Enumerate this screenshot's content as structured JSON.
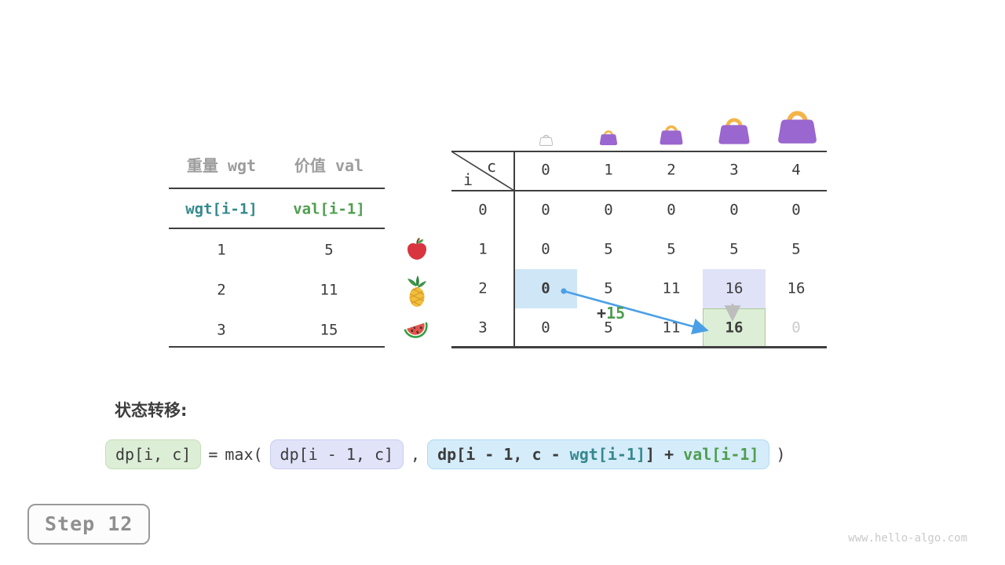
{
  "colors": {
    "accent_blue_arrow": "#4aa0e6",
    "gray_arrow": "#bdbdbd",
    "teal": "#35898d",
    "green": "#4f9e4f",
    "bag_purple": "#9a66cf",
    "bag_handle_orange": "#f3b54a",
    "hl_blue": "#cfe6f7",
    "hl_lavender": "#e0e2f7",
    "hl_green": "#ddeed6",
    "hl_green_border": "#a9c999",
    "text_dark": "#3c3c3c",
    "text_gray": "#9d9d9d",
    "text_faded": "#cbcbcb"
  },
  "item_table": {
    "col_headers": [
      "重量 wgt",
      "价值 val"
    ],
    "var_row": [
      "wgt[i-1]",
      "val[i-1]"
    ],
    "rows": [
      [
        "1",
        "5"
      ],
      [
        "2",
        "11"
      ],
      [
        "3",
        "15"
      ]
    ]
  },
  "fruit_icons": [
    "apple-icon",
    "pineapple-icon",
    "watermelon-icon"
  ],
  "capacity_bags": [
    {
      "capacity": 0,
      "style": "outline",
      "icon": "handbag-outline-icon"
    },
    {
      "capacity": 1,
      "style": "filled",
      "icon": "handbag-icon"
    },
    {
      "capacity": 2,
      "style": "filled",
      "icon": "handbag-icon"
    },
    {
      "capacity": 3,
      "style": "filled",
      "icon": "handbag-icon"
    },
    {
      "capacity": 4,
      "style": "filled",
      "icon": "handbag-icon"
    }
  ],
  "dp_table": {
    "corner": {
      "col_label": "c",
      "row_label": "i"
    },
    "col_headers": [
      "0",
      "1",
      "2",
      "3",
      "4"
    ],
    "row_headers": [
      "0",
      "1",
      "2",
      "3"
    ],
    "values": [
      [
        "0",
        "0",
        "0",
        "0",
        "0"
      ],
      [
        "0",
        "5",
        "5",
        "5",
        "5"
      ],
      [
        "0",
        "5",
        "11",
        "16",
        "16"
      ],
      [
        "0",
        "5",
        "11",
        "16",
        "0"
      ]
    ],
    "highlights": [
      {
        "row": 2,
        "col": 0,
        "kind": "pick-source",
        "color": "#cfe6f7",
        "bold": true
      },
      {
        "row": 2,
        "col": 3,
        "kind": "skip-source",
        "color": "#e0e2f7",
        "bold": false
      },
      {
        "row": 3,
        "col": 3,
        "kind": "current-target",
        "color": "#ddeed6",
        "border": "#a9c999",
        "bold": true
      },
      {
        "row": 3,
        "col": 4,
        "kind": "pending-faded",
        "faded": true
      }
    ],
    "transition_annotation": {
      "plus": "+",
      "value": "15"
    }
  },
  "formula": {
    "heading": "状态转移:",
    "lhs": "dp[i, c]",
    "equals": "=",
    "max_open": "max(",
    "arg_skip": "dp[i - 1, c]",
    "comma": ",",
    "arg_pick": [
      {
        "text": "dp[i - 1, c - ",
        "color": "#3c3c3c"
      },
      {
        "text": "wgt[i-1]",
        "color": "#35898d"
      },
      {
        "text": "] + ",
        "color": "#3c3c3c"
      },
      {
        "text": "val[i-1]",
        "color": "#4f9e4f"
      }
    ],
    "close_paren": ")"
  },
  "footer": {
    "step_label": "Step 12",
    "watermark": "www.hello-algo.com"
  }
}
